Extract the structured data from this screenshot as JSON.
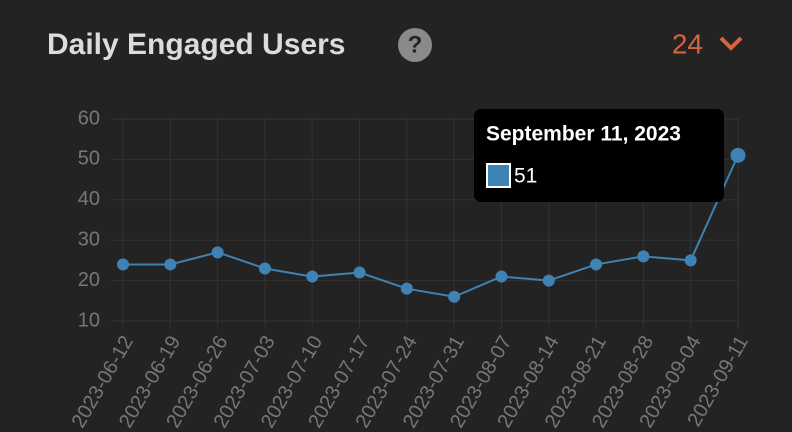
{
  "header": {
    "title": "Daily Engaged Users",
    "help_icon": "?",
    "range": "24"
  },
  "chart_data": {
    "type": "line",
    "categories": [
      "2023-06-12",
      "2023-06-19",
      "2023-06-26",
      "2023-07-03",
      "2023-07-10",
      "2023-07-17",
      "2023-07-24",
      "2023-07-31",
      "2023-08-07",
      "2023-08-14",
      "2023-08-21",
      "2023-08-28",
      "2023-09-04",
      "2023-09-11"
    ],
    "series": [
      {
        "color": "#3f82b4",
        "values": [
          24,
          24,
          27,
          23,
          21,
          22,
          18,
          16,
          21,
          20,
          24,
          26,
          25,
          51
        ]
      }
    ],
    "ylim": [
      10,
      60
    ],
    "yticks": [
      10,
      20,
      30,
      40,
      50,
      60
    ],
    "grid": true,
    "tooltip_title": "September 11, 2023"
  }
}
